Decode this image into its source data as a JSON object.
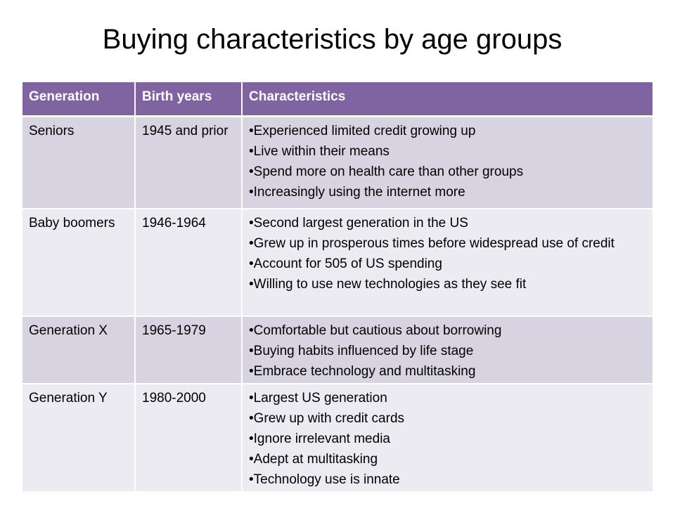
{
  "title": "Buying characteristics by age groups",
  "table": {
    "headers": [
      "Generation",
      "Birth years",
      "Characteristics"
    ],
    "rows": [
      {
        "generation": "Seniors",
        "birth_years": "1945 and prior",
        "characteristics": [
          "Experienced limited credit growing up",
          "Live within their means",
          "Spend more on health care than other groups",
          "Increasingly using the internet more"
        ]
      },
      {
        "generation": "Baby boomers",
        "birth_years": "1946-1964",
        "characteristics": [
          "Second largest generation in the US",
          "Grew up in prosperous times before widespread use of credit",
          "Account for 505 of US spending",
          "Willing to use new technologies as they see fit"
        ]
      },
      {
        "generation": "Generation X",
        "birth_years": "1965-1979",
        "characteristics": [
          "Comfortable but cautious about borrowing",
          "Buying habits influenced by life stage",
          "Embrace technology and  multitasking"
        ]
      },
      {
        "generation": "Generation Y",
        "birth_years": "1980-2000",
        "characteristics": [
          "Largest US generation",
          "Grew up with credit cards",
          "Ignore irrelevant media",
          "Adept at multitasking",
          "Technology use is innate"
        ]
      }
    ]
  },
  "colors": {
    "header_bg": "#8064a2",
    "row_odd_bg": "#d8d3e0",
    "row_even_bg": "#ecebf1"
  }
}
